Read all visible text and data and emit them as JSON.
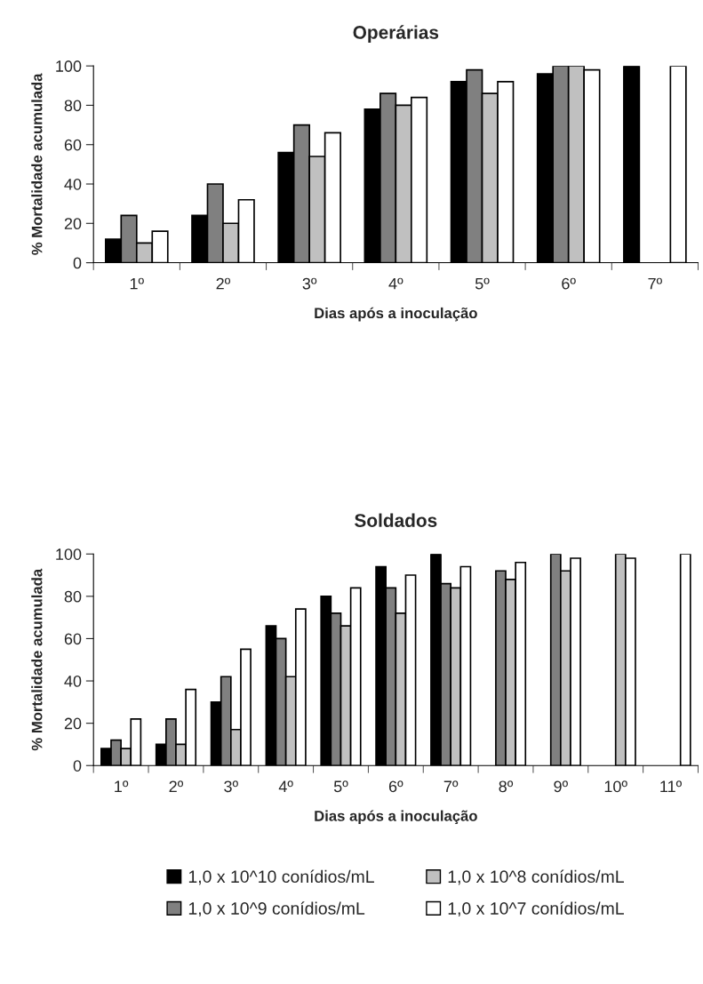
{
  "chart_data": [
    {
      "type": "bar",
      "title": "Operárias",
      "xlabel": "Dias após a inoculação",
      "ylabel": "% Mortalidade acumulada",
      "categories": [
        "1º",
        "2º",
        "3º",
        "4º",
        "5º",
        "6º",
        "7º"
      ],
      "series": [
        {
          "color": "#000000",
          "values": [
            12,
            24,
            56,
            78,
            92,
            96,
            100
          ]
        },
        {
          "color": "#808080",
          "values": [
            24,
            40,
            70,
            86,
            98,
            100,
            null
          ]
        },
        {
          "color": "#c0c0c0",
          "values": [
            10,
            20,
            54,
            80,
            86,
            100,
            null
          ]
        },
        {
          "color": "#ffffff",
          "values": [
            16,
            32,
            66,
            84,
            92,
            98,
            100
          ]
        }
      ],
      "ylim": [
        0,
        100
      ],
      "yticks": [
        0,
        20,
        40,
        60,
        80,
        100
      ],
      "grid": false,
      "legend": false
    },
    {
      "type": "bar",
      "title": "Soldados",
      "xlabel": "Dias após a inoculação",
      "ylabel": "% Mortalidade acumulada",
      "categories": [
        "1º",
        "2º",
        "3º",
        "4º",
        "5º",
        "6º",
        "7º",
        "8º",
        "9º",
        "10º",
        "11º"
      ],
      "series": [
        {
          "name": "1,0 x 10^10 conídios/mL",
          "color": "#000000",
          "values": [
            8,
            10,
            30,
            66,
            80,
            94,
            100,
            null,
            null,
            null,
            null
          ]
        },
        {
          "name": "1,0 x 10^9 conídios/mL",
          "color": "#808080",
          "values": [
            12,
            22,
            42,
            60,
            72,
            84,
            86,
            92,
            100,
            null,
            null
          ]
        },
        {
          "name": "1,0 x 10^8 conídios/mL",
          "color": "#c0c0c0",
          "values": [
            8,
            10,
            17,
            42,
            66,
            72,
            84,
            88,
            92,
            100,
            null
          ]
        },
        {
          "name": "1,0 x 10^7 conídios/mL",
          "color": "#ffffff",
          "values": [
            22,
            36,
            55,
            74,
            84,
            90,
            94,
            96,
            98,
            98,
            100
          ]
        }
      ],
      "ylim": [
        0,
        100
      ],
      "yticks": [
        0,
        20,
        40,
        60,
        80,
        100
      ],
      "grid": false,
      "legend": "bottom"
    }
  ]
}
